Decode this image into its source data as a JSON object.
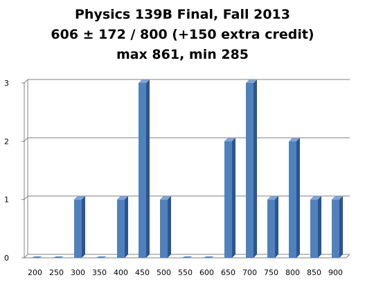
{
  "chart_data": {
    "type": "bar",
    "title_lines": [
      "Physics 139B Final, Fall 2013",
      "606 ± 172 / 800 (+150 extra credit)",
      "max 861, min 285"
    ],
    "xlabel": "",
    "ylabel": "",
    "categories": [
      "200",
      "250",
      "300",
      "350",
      "400",
      "450",
      "500",
      "550",
      "600",
      "650",
      "700",
      "750",
      "800",
      "850",
      "900"
    ],
    "values": [
      0,
      0,
      1,
      0,
      1,
      3,
      1,
      0,
      0,
      2,
      3,
      1,
      2,
      1,
      1
    ],
    "ylim": [
      0,
      3
    ],
    "yticks": [
      "0",
      "1",
      "2",
      "3"
    ],
    "grid": true,
    "legend": "none",
    "style": "3d-column",
    "colors": {
      "bar_front": "#4f81bd",
      "bar_side": "#2c5590",
      "bar_top": "#7fa4d4",
      "grid": "#808080",
      "axis": "#808080"
    }
  }
}
